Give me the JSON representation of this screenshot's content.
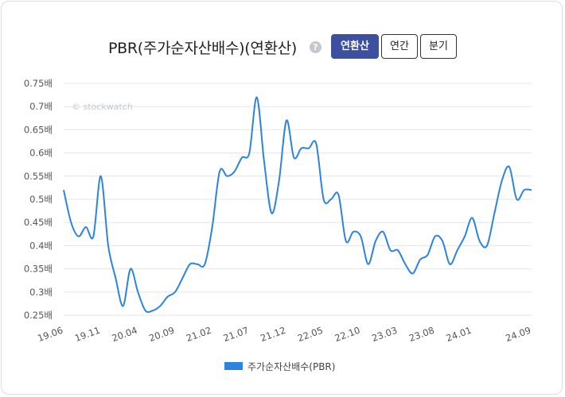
{
  "header": {
    "title": "PBR(주가순자산배수)(연환산)",
    "help_icon": "?",
    "buttons": [
      {
        "label": "연환산",
        "active": true
      },
      {
        "label": "연간",
        "active": false
      },
      {
        "label": "분기",
        "active": false
      }
    ]
  },
  "colors": {
    "series": "#2c83e0",
    "active_button": "#3d4f9f",
    "grid": "#e6e6e6"
  },
  "watermark": "© stockwatch",
  "chart_data": {
    "type": "line",
    "title": "PBR(주가순자산배수)(연환산)",
    "ylim": [
      0.25,
      0.75
    ],
    "y_ticks": [
      0.25,
      0.3,
      0.35,
      0.4,
      0.45,
      0.5,
      0.55,
      0.6,
      0.65,
      0.7,
      0.75
    ],
    "y_unit": "배",
    "x_tick_labels": [
      "19.06",
      "19.11",
      "20.04",
      "20.09",
      "21.02",
      "21.07",
      "21.12",
      "22.05",
      "22.10",
      "23.03",
      "23.08",
      "24.01",
      "24.09"
    ],
    "grid": true,
    "legend_position": "bottom",
    "series": [
      {
        "name": "주가순자산배수(PBR)",
        "x": [
          "19.06",
          "19.07",
          "19.08",
          "19.09",
          "19.10",
          "19.11",
          "19.12",
          "20.01",
          "20.02",
          "20.03",
          "20.04",
          "20.05",
          "20.06",
          "20.07",
          "20.08",
          "20.09",
          "20.10",
          "20.11",
          "20.12",
          "21.01",
          "21.02",
          "21.03",
          "21.04",
          "21.05",
          "21.06",
          "21.07",
          "21.08",
          "21.09",
          "21.10",
          "21.11",
          "21.12",
          "22.01",
          "22.02",
          "22.03",
          "22.04",
          "22.05",
          "22.06",
          "22.07",
          "22.08",
          "22.09",
          "22.10",
          "22.11",
          "22.12",
          "23.01",
          "23.02",
          "23.03",
          "23.04",
          "23.05",
          "23.06",
          "23.07",
          "23.08",
          "23.09",
          "23.10",
          "23.11",
          "23.12",
          "24.01",
          "24.02",
          "24.03",
          "24.04",
          "24.05",
          "24.06",
          "24.07",
          "24.08",
          "24.09"
        ],
        "values": [
          0.52,
          0.45,
          0.42,
          0.44,
          0.42,
          0.55,
          0.4,
          0.33,
          0.27,
          0.35,
          0.3,
          0.26,
          0.26,
          0.27,
          0.29,
          0.3,
          0.33,
          0.36,
          0.36,
          0.36,
          0.44,
          0.56,
          0.55,
          0.56,
          0.59,
          0.6,
          0.72,
          0.58,
          0.47,
          0.54,
          0.67,
          0.59,
          0.61,
          0.61,
          0.62,
          0.5,
          0.5,
          0.51,
          0.41,
          0.43,
          0.42,
          0.36,
          0.41,
          0.43,
          0.39,
          0.39,
          0.36,
          0.34,
          0.37,
          0.38,
          0.42,
          0.41,
          0.36,
          0.39,
          0.42,
          0.46,
          0.41,
          0.4,
          0.47,
          0.54,
          0.57,
          0.5,
          0.52,
          0.52
        ]
      }
    ]
  },
  "legend": {
    "label": "주가순자산배수(PBR)"
  }
}
